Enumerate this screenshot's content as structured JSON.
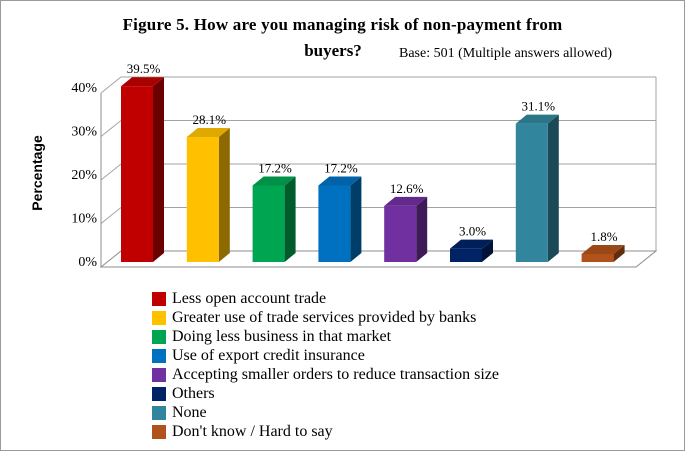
{
  "figure": {
    "title_line1": "Figure 5. How are you managing risk of non-payment from",
    "title_line2": "buyers?",
    "subtitle": "Base: 501 (Multiple answers allowed)"
  },
  "chart_data": {
    "type": "bar",
    "style": "3d-column",
    "title": "Figure 5. How are you managing risk of non-payment from buyers?",
    "subtitle": "Base: 501 (Multiple answers allowed)",
    "ylabel": "Percentage",
    "xlabel": "",
    "ylim": [
      0,
      40
    ],
    "yticks": [
      "0%",
      "10%",
      "20%",
      "30%",
      "40%"
    ],
    "grid": true,
    "legend_position": "bottom",
    "categories": [
      "Less open account trade",
      "Greater use of trade services provided by banks",
      "Doing less business in that market",
      "Use of export credit insurance",
      "Accepting smaller orders to reduce transaction size",
      "Others",
      "None",
      "Don't know / Hard to say"
    ],
    "values": [
      39.5,
      28.1,
      17.2,
      17.2,
      12.6,
      3.0,
      31.1,
      1.8
    ],
    "value_labels": [
      "39.5%",
      "28.1%",
      "17.2%",
      "17.2%",
      "12.6%",
      "3.0%",
      "31.1%",
      "1.8%"
    ],
    "colors": [
      "#C00000",
      "#FFC000",
      "#00A551",
      "#0070C0",
      "#7030A0",
      "#002366",
      "#31859C",
      "#B0521A"
    ],
    "gridline_color": "#A3A3A3",
    "frame_color": "#8C8C8C",
    "text_color": "#000000"
  }
}
